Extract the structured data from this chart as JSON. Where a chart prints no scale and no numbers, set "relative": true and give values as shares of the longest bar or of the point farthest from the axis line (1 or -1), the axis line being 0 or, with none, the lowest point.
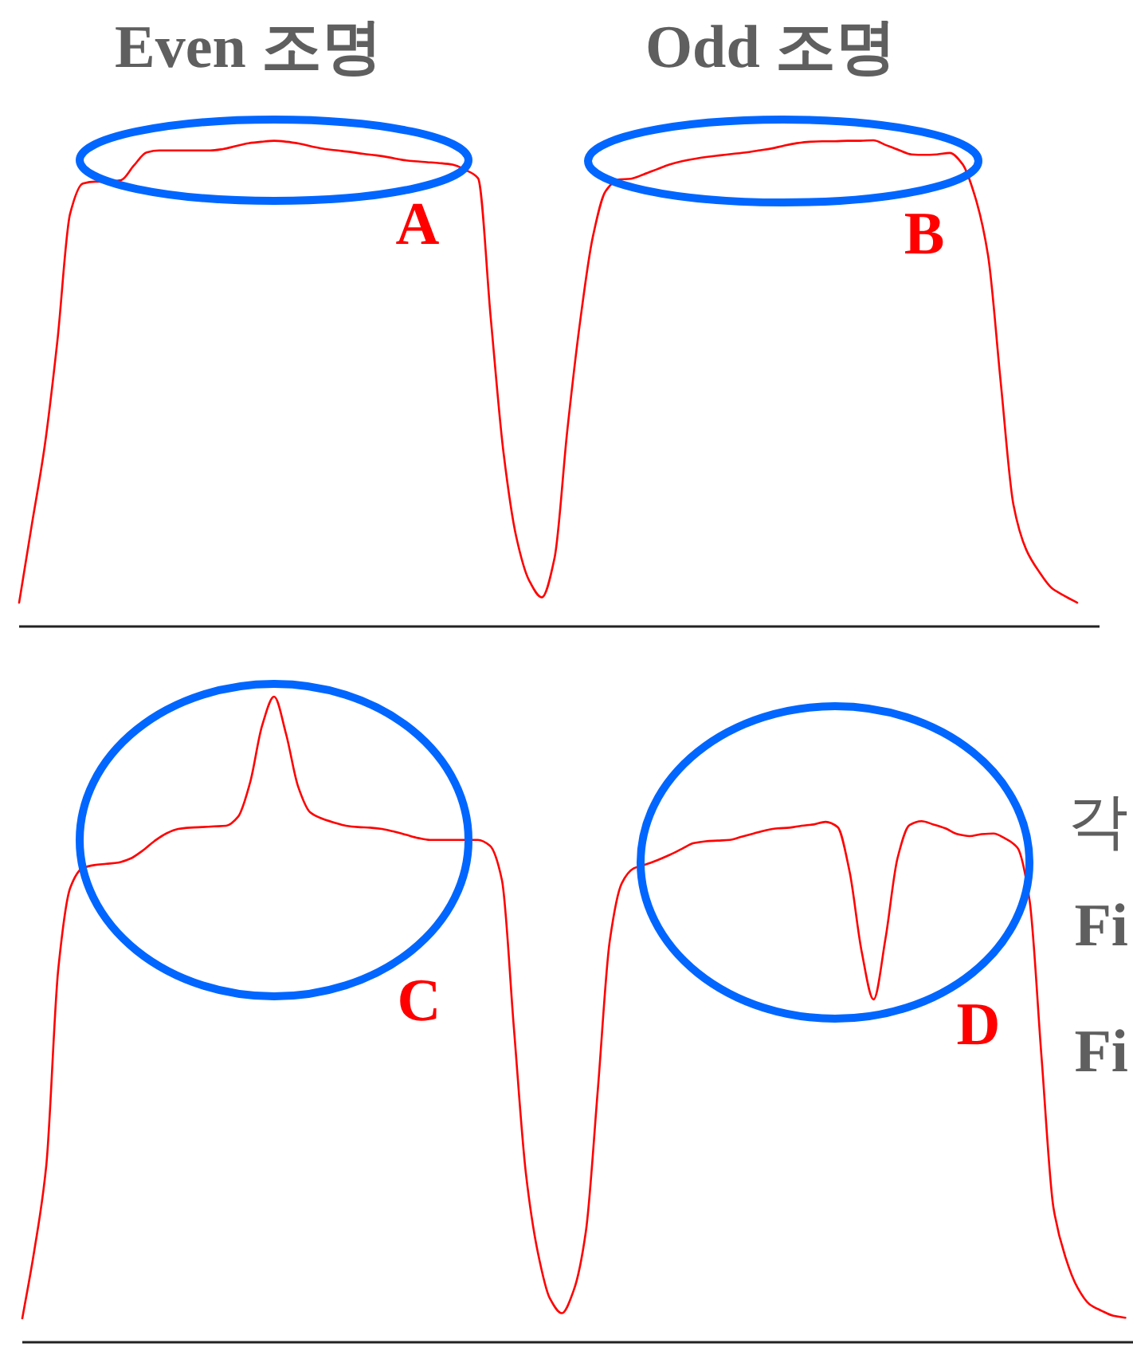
{
  "chart_data": [
    {
      "type": "line",
      "relative": true,
      "categories": [
        null,
        null,
        null,
        null,
        null,
        null,
        null,
        null,
        null,
        null,
        null,
        null,
        null,
        null,
        null,
        null,
        null,
        null,
        null,
        null,
        null,
        null,
        null,
        null,
        null,
        null,
        null,
        null,
        null,
        null,
        null,
        null,
        null,
        null,
        null,
        null,
        null,
        null,
        null,
        null,
        null,
        null,
        null,
        null,
        null,
        null,
        null,
        null,
        null,
        null,
        null,
        null,
        null,
        null,
        null,
        null,
        null,
        null,
        null,
        null,
        null,
        null,
        null,
        null,
        null,
        null,
        null,
        null,
        null,
        null,
        null,
        null,
        null,
        null,
        null,
        null,
        null,
        null,
        null,
        null,
        null,
        null,
        null,
        null
      ],
      "series": [
        {
          "color": "#ff0000",
          "values": [
            0.049,
            0.21,
            0.37,
            0.587,
            0.849,
            0.911,
            0.915,
            0.915,
            0.918,
            0.948,
            0.975,
            0.979,
            0.979,
            0.979,
            0.979,
            0.979,
            0.982,
            0.988,
            0.994,
            0.997,
            0.999,
            0.997,
            0.993,
            0.987,
            0.982,
            0.979,
            0.976,
            0.972,
            0.969,
            0.965,
            0.96,
            0.957,
            0.955,
            0.953,
            0.95,
            0.939,
            0.922,
            0.633,
            0.357,
            0.184,
            0.095,
            0.06,
            0.141,
            0.403,
            0.626,
            0.801,
            0.895,
            0.919,
            0.921,
            0.93,
            0.94,
            0.95,
            0.957,
            0.962,
            0.966,
            0.969,
            0.972,
            0.975,
            0.979,
            0.983,
            0.989,
            0.994,
            0.997,
            0.998,
            0.998,
            0.999,
            0.999,
            1.0,
            0.99,
            0.98,
            0.971,
            0.97,
            0.971,
            0.974,
            0.951,
            0.883,
            0.764,
            0.502,
            0.25,
            0.158,
            0.113,
            0.079,
            0.063,
            0.049
          ]
        }
      ],
      "annotations": [
        "Even 조명",
        "Odd 조명",
        "A",
        "B"
      ]
    },
    {
      "type": "line",
      "relative": true,
      "categories": [
        null,
        null,
        null,
        null,
        null,
        null,
        null,
        null,
        null,
        null,
        null,
        null,
        null,
        null,
        null,
        null,
        null,
        null,
        null,
        null,
        null,
        null,
        null,
        null,
        null,
        null,
        null,
        null,
        null,
        null,
        null,
        null,
        null,
        null,
        null,
        null,
        null,
        null,
        null,
        null,
        null,
        null,
        null,
        null,
        null,
        null,
        null,
        null,
        null,
        null,
        null,
        null,
        null,
        null,
        null,
        null,
        null,
        null,
        null,
        null,
        null,
        null,
        null,
        null,
        null,
        null,
        null,
        null,
        null,
        null,
        null,
        null,
        null,
        null,
        null,
        null,
        null,
        null,
        null,
        null,
        null,
        null,
        null,
        null,
        null,
        null,
        null,
        null,
        null,
        null,
        null,
        null,
        null
      ],
      "series": [
        {
          "color": "#ff0000",
          "values": [
            0.037,
            0.142,
            0.274,
            0.578,
            0.704,
            0.734,
            0.739,
            0.741,
            0.743,
            0.749,
            0.761,
            0.776,
            0.788,
            0.795,
            0.797,
            0.798,
            0.799,
            0.8,
            0.814,
            0.867,
            0.955,
            1.0,
            0.942,
            0.861,
            0.821,
            0.811,
            0.805,
            0.8,
            0.798,
            0.797,
            0.795,
            0.791,
            0.786,
            0.781,
            0.778,
            0.778,
            0.778,
            0.778,
            0.778,
            0.769,
            0.716,
            0.487,
            0.262,
            0.139,
            0.068,
            0.045,
            0.081,
            0.171,
            0.391,
            0.622,
            0.711,
            0.734,
            0.74,
            0.747,
            0.755,
            0.764,
            0.773,
            0.776,
            0.777,
            0.778,
            0.783,
            0.788,
            0.793,
            0.796,
            0.797,
            0.8,
            0.802,
            0.806,
            0.798,
            0.729,
            0.606,
            0.531,
            0.626,
            0.75,
            0.801,
            0.807,
            0.802,
            0.796,
            0.787,
            0.784,
            0.787,
            0.788,
            0.78,
            0.766,
            0.686,
            0.444,
            0.209,
            0.132,
            0.085,
            0.059,
            0.049,
            0.041,
            0.038
          ]
        }
      ],
      "annotations": [
        "C",
        "D",
        "각",
        "Fi",
        "Fi"
      ]
    }
  ]
}
